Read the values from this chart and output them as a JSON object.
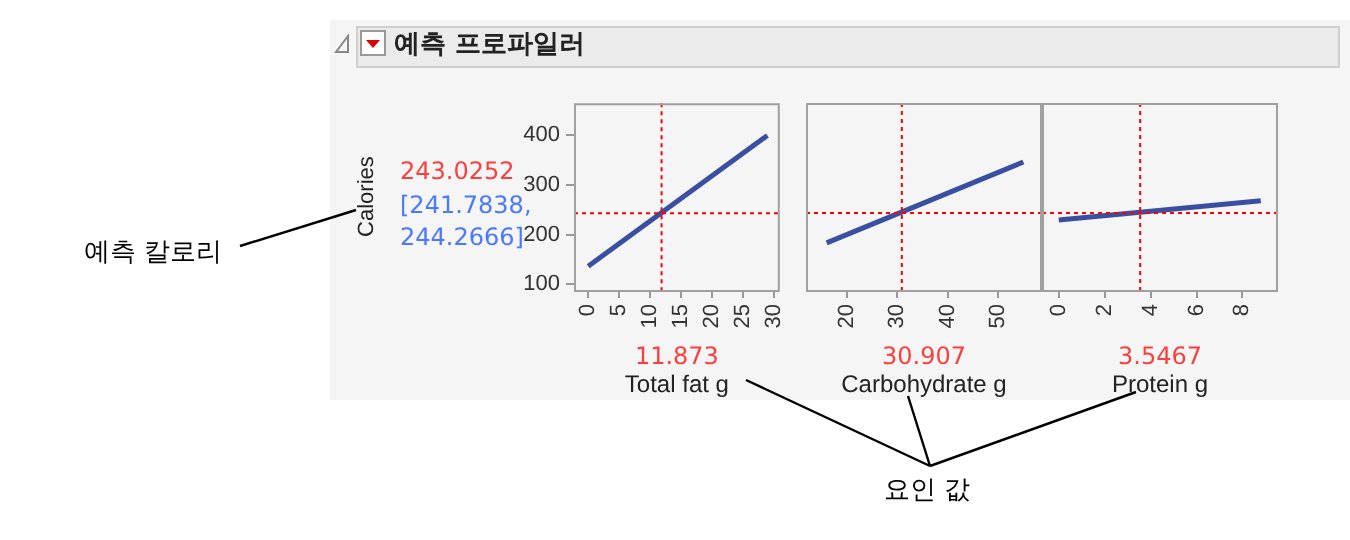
{
  "chart_data": [
    {
      "type": "line",
      "title": "예측 프로파일러",
      "ylabel": "Calories",
      "xlabel": "Total fat g",
      "x": [
        0,
        29
      ],
      "series": [
        {
          "color": "#3a4fa0",
          "values": [
            136,
            400
          ]
        }
      ],
      "xlim": [
        -2.3,
        31
      ],
      "xticks": [
        0,
        5,
        10,
        15,
        20,
        25,
        30
      ],
      "ylim": [
        88,
        465
      ],
      "yticks": [
        100,
        200,
        300,
        400
      ],
      "grid": false,
      "marker": "none",
      "line_style": "solid",
      "ref_lines": [
        {
          "axis": "x",
          "value": 11.873,
          "label": "11.873",
          "color": "#ff0000",
          "line_style": "dotted"
        },
        {
          "axis": "y",
          "value": 243.0252,
          "label": "243.0252",
          "color": "#ff0000",
          "line_style": "dotted"
        }
      ],
      "annotations": [
        "[241.7838, 244.2666]",
        "예측 칼로리"
      ]
    },
    {
      "type": "line",
      "xlabel": "Carbohydrate g",
      "x": [
        16,
        55
      ],
      "series": [
        {
          "color": "#3a4fa0",
          "values": [
            183,
            346
          ]
        }
      ],
      "xlim": [
        11.9,
        58.7
      ],
      "xticks": [
        20,
        30,
        40,
        50
      ],
      "ylim": [
        88,
        465
      ],
      "yticks": [
        100,
        200,
        300,
        400
      ],
      "tick_labels": "x",
      "grid": false,
      "marker": "none",
      "line_style": "solid",
      "ref_lines": [
        {
          "axis": "x",
          "value": 30.907,
          "label": "30.907",
          "color": "#ff0000",
          "line_style": "dotted"
        },
        {
          "axis": "y",
          "value": 243.0252,
          "color": "#ff0000",
          "line_style": "dotted"
        }
      ],
      "annotations": [
        "요인 값"
      ]
    },
    {
      "type": "line",
      "xlabel": "Protein g",
      "x": [
        0,
        8.8
      ],
      "series": [
        {
          "color": "#3a4fa0",
          "values": [
            229,
            268
          ]
        }
      ],
      "xlim": [
        -0.73,
        9.55
      ],
      "xticks": [
        0,
        2,
        4,
        6,
        8
      ],
      "ylim": [
        88,
        465
      ],
      "yticks": [
        100,
        200,
        300,
        400
      ],
      "tick_labels": "x",
      "grid": false,
      "marker": "none",
      "line_style": "solid",
      "ref_lines": [
        {
          "axis": "x",
          "value": 3.5467,
          "label": "3.5467",
          "color": "#ff0000",
          "line_style": "dotted"
        },
        {
          "axis": "y",
          "value": 243.0252,
          "color": "#ff0000",
          "line_style": "dotted"
        }
      ]
    }
  ]
}
